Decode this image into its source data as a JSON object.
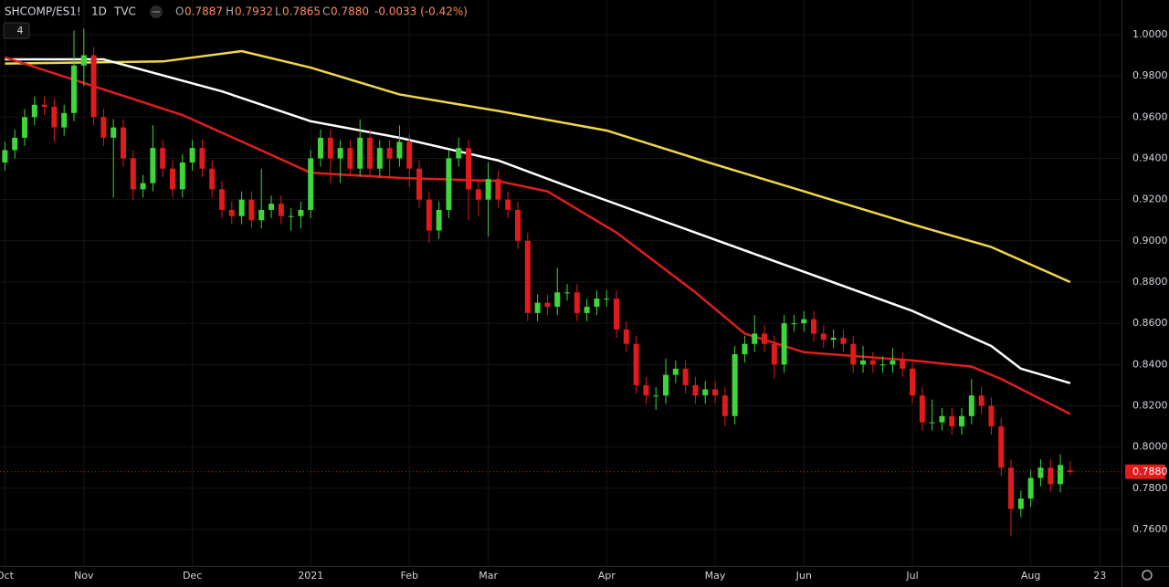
{
  "header": {
    "symbol": "SHCOMP/ES1!",
    "interval": "1D",
    "source": "TVC",
    "ohlc": [
      {
        "key": "O",
        "value": "0.7887"
      },
      {
        "key": "H",
        "value": "0.7932"
      },
      {
        "key": "L",
        "value": "0.7865"
      },
      {
        "key": "C",
        "value": "0.7880"
      }
    ],
    "change": "-0.0033 (-0.42%)",
    "indicator_count": "4"
  },
  "chart_data": {
    "type": "candlestick",
    "up_color": "#3fd63a",
    "down_color": "#e01b1b",
    "grid": true,
    "categories": [
      null,
      null,
      null,
      null,
      null,
      null,
      null,
      null,
      null,
      null,
      null,
      null,
      null,
      null,
      null,
      null,
      null,
      null,
      null,
      null,
      null,
      null,
      null,
      null,
      null,
      null,
      null,
      null,
      null,
      null,
      null,
      null,
      null,
      null,
      null,
      null,
      null,
      null,
      null,
      null,
      null,
      null,
      null,
      null,
      null,
      null,
      null,
      null,
      null,
      null,
      null,
      null,
      null,
      null,
      null,
      null,
      null,
      null,
      null,
      null,
      null,
      null,
      null,
      null,
      null,
      null,
      null,
      null,
      null,
      null,
      null,
      null,
      null,
      null,
      null,
      null,
      null,
      null,
      null,
      null,
      null,
      null,
      null,
      null,
      null,
      null,
      null,
      null,
      null,
      null,
      null,
      null,
      null,
      null,
      null,
      null,
      null,
      null,
      null,
      null,
      null,
      null,
      null,
      null,
      null,
      null,
      null,
      null,
      null
    ],
    "open": [
      0.938,
      0.944,
      0.95,
      0.96,
      0.966,
      0.965,
      0.955,
      0.962,
      0.985,
      0.99,
      0.96,
      0.95,
      0.955,
      0.94,
      0.925,
      0.928,
      0.945,
      0.935,
      0.925,
      0.938,
      0.945,
      0.935,
      0.925,
      0.915,
      0.912,
      0.92,
      0.91,
      0.915,
      0.918,
      0.912,
      0.912,
      0.915,
      0.94,
      0.95,
      0.94,
      0.945,
      0.935,
      0.95,
      0.935,
      0.945,
      0.94,
      0.948,
      0.935,
      0.92,
      0.905,
      0.915,
      0.94,
      0.945,
      0.925,
      0.92,
      0.93,
      0.92,
      0.915,
      0.9,
      0.865,
      0.87,
      0.868,
      0.875,
      0.875,
      0.865,
      0.868,
      0.872,
      0.872,
      0.857,
      0.85,
      0.83,
      0.825,
      0.825,
      0.835,
      0.838,
      0.83,
      0.825,
      0.828,
      0.825,
      0.815,
      0.845,
      0.85,
      0.855,
      0.85,
      0.84,
      0.86,
      0.86,
      0.862,
      0.855,
      0.852,
      0.853,
      0.85,
      0.84,
      0.842,
      0.84,
      0.84,
      0.842,
      0.838,
      0.825,
      0.812,
      0.812,
      0.815,
      0.81,
      0.815,
      0.825,
      0.82,
      0.81,
      0.79,
      0.77,
      0.775,
      0.785,
      0.79,
      0.782,
      0.7887
    ],
    "high": [
      0.948,
      0.954,
      0.964,
      0.97,
      0.97,
      0.969,
      0.966,
      1.002,
      1.003,
      0.994,
      0.964,
      0.959,
      0.959,
      0.944,
      0.932,
      0.956,
      0.949,
      0.939,
      0.942,
      0.949,
      0.949,
      0.939,
      0.929,
      0.919,
      0.924,
      0.924,
      0.935,
      0.922,
      0.922,
      0.916,
      0.919,
      0.944,
      0.954,
      0.954,
      0.949,
      0.949,
      0.959,
      0.954,
      0.949,
      0.949,
      0.956,
      0.952,
      0.939,
      0.924,
      0.919,
      0.944,
      0.95,
      0.949,
      0.929,
      0.938,
      0.934,
      0.924,
      0.919,
      0.904,
      0.874,
      0.874,
      0.887,
      0.879,
      0.879,
      0.872,
      0.876,
      0.876,
      0.876,
      0.861,
      0.854,
      0.834,
      0.829,
      0.843,
      0.842,
      0.842,
      0.834,
      0.832,
      0.832,
      0.829,
      0.849,
      0.854,
      0.864,
      0.859,
      0.854,
      0.864,
      0.864,
      0.866,
      0.866,
      0.859,
      0.857,
      0.857,
      0.854,
      0.849,
      0.846,
      0.844,
      0.848,
      0.846,
      0.842,
      0.829,
      0.823,
      0.819,
      0.819,
      0.819,
      0.833,
      0.829,
      0.824,
      0.814,
      0.794,
      0.779,
      0.789,
      0.794,
      0.794,
      0.7965,
      0.7932
    ],
    "low": [
      0.934,
      0.94,
      0.946,
      0.956,
      0.961,
      0.948,
      0.951,
      0.958,
      0.975,
      0.956,
      0.946,
      0.921,
      0.936,
      0.92,
      0.921,
      0.924,
      0.931,
      0.921,
      0.921,
      0.934,
      0.931,
      0.921,
      0.911,
      0.908,
      0.908,
      0.906,
      0.906,
      0.911,
      0.908,
      0.905,
      0.906,
      0.911,
      0.936,
      0.928,
      0.928,
      0.931,
      0.931,
      0.931,
      0.931,
      0.93,
      0.936,
      0.926,
      0.916,
      0.899,
      0.901,
      0.911,
      0.936,
      0.91,
      0.912,
      0.902,
      0.916,
      0.911,
      0.896,
      0.861,
      0.861,
      0.864,
      0.864,
      0.871,
      0.861,
      0.861,
      0.864,
      0.868,
      0.853,
      0.846,
      0.826,
      0.821,
      0.818,
      0.821,
      0.831,
      0.826,
      0.821,
      0.821,
      0.821,
      0.81,
      0.811,
      0.841,
      0.846,
      0.846,
      0.833,
      0.836,
      0.856,
      0.856,
      0.851,
      0.848,
      0.848,
      0.846,
      0.836,
      0.836,
      0.836,
      0.836,
      0.836,
      0.834,
      0.821,
      0.808,
      0.808,
      0.808,
      0.806,
      0.806,
      0.811,
      0.816,
      0.806,
      0.786,
      0.757,
      0.766,
      0.771,
      0.781,
      0.778,
      0.778,
      0.7865
    ],
    "close": [
      0.944,
      0.95,
      0.96,
      0.966,
      0.965,
      0.955,
      0.962,
      0.985,
      0.99,
      0.96,
      0.95,
      0.955,
      0.94,
      0.925,
      0.928,
      0.945,
      0.935,
      0.925,
      0.938,
      0.945,
      0.935,
      0.925,
      0.915,
      0.912,
      0.92,
      0.91,
      0.915,
      0.918,
      0.912,
      0.912,
      0.915,
      0.94,
      0.95,
      0.94,
      0.945,
      0.935,
      0.95,
      0.935,
      0.945,
      0.94,
      0.948,
      0.935,
      0.92,
      0.905,
      0.915,
      0.94,
      0.945,
      0.925,
      0.92,
      0.93,
      0.92,
      0.915,
      0.9,
      0.865,
      0.87,
      0.868,
      0.875,
      0.875,
      0.865,
      0.868,
      0.872,
      0.872,
      0.857,
      0.85,
      0.83,
      0.825,
      0.825,
      0.835,
      0.838,
      0.83,
      0.825,
      0.828,
      0.825,
      0.815,
      0.845,
      0.85,
      0.855,
      0.85,
      0.84,
      0.86,
      0.86,
      0.862,
      0.855,
      0.852,
      0.853,
      0.85,
      0.84,
      0.842,
      0.84,
      0.84,
      0.842,
      0.838,
      0.825,
      0.812,
      0.812,
      0.815,
      0.81,
      0.815,
      0.825,
      0.82,
      0.81,
      0.79,
      0.77,
      0.775,
      0.785,
      0.79,
      0.782,
      0.7913,
      0.788
    ],
    "lines": [
      {
        "color": "#f0d74a",
        "x": [
          0,
          16,
          24,
          31,
          40,
          50,
          61,
          72,
          81,
          92,
          100,
          108
        ],
        "values": [
          0.986,
          0.987,
          0.992,
          0.984,
          0.971,
          0.963,
          0.9535,
          0.937,
          0.924,
          0.908,
          0.897,
          0.88
        ]
      },
      {
        "color": "#ffffff",
        "x": [
          0,
          10,
          22,
          31,
          40,
          50,
          59,
          70,
          81,
          92,
          100,
          103,
          108
        ],
        "values": [
          0.988,
          0.988,
          0.9725,
          0.958,
          0.95,
          0.939,
          0.923,
          0.904,
          0.885,
          0.866,
          0.849,
          0.838,
          0.831
        ]
      },
      {
        "color": "#e01e1e",
        "x": [
          0,
          9,
          18,
          25,
          31,
          40,
          50,
          55,
          62,
          70,
          75,
          81,
          92,
          98,
          101,
          108
        ],
        "values": [
          0.989,
          0.975,
          0.961,
          0.946,
          0.933,
          0.9305,
          0.929,
          0.924,
          0.904,
          0.875,
          0.855,
          0.846,
          0.842,
          0.839,
          0.833,
          0.816
        ]
      }
    ],
    "last_price": {
      "value": 0.788,
      "label": "0.7880"
    },
    "last_price_color": "#e01b1b",
    "xlim": [
      -0.5,
      113.2
    ],
    "xticks": [
      {
        "value": 0,
        "label": "Oct"
      },
      {
        "value": 8,
        "label": "Nov"
      },
      {
        "value": 19,
        "label": "Dec"
      },
      {
        "value": 31,
        "label": "2021"
      },
      {
        "value": 41,
        "label": "Feb"
      },
      {
        "value": 49,
        "label": "Mar"
      },
      {
        "value": 61,
        "label": "Apr"
      },
      {
        "value": 72,
        "label": "May"
      },
      {
        "value": 81,
        "label": "Jun"
      },
      {
        "value": 92,
        "label": "Jul"
      },
      {
        "value": 104,
        "label": "Aug"
      },
      {
        "value": 111,
        "label": "23"
      }
    ],
    "ylim": [
      0.7423,
      1.0168
    ],
    "yticks": [
      {
        "value": 0.76,
        "label": "0.7600"
      },
      {
        "value": 0.78,
        "label": "0.7800"
      },
      {
        "value": 0.8,
        "label": "0.8000"
      },
      {
        "value": 0.82,
        "label": "0.8200"
      },
      {
        "value": 0.84,
        "label": "0.8400"
      },
      {
        "value": 0.86,
        "label": "0.8600"
      },
      {
        "value": 0.88,
        "label": "0.8800"
      },
      {
        "value": 0.9,
        "label": "0.9000"
      },
      {
        "value": 0.92,
        "label": "0.9200"
      },
      {
        "value": 0.94,
        "label": "0.9400"
      },
      {
        "value": 0.96,
        "label": "0.9600"
      },
      {
        "value": 0.98,
        "label": "0.9800"
      },
      {
        "value": 1.0,
        "label": "1.0000"
      }
    ]
  }
}
